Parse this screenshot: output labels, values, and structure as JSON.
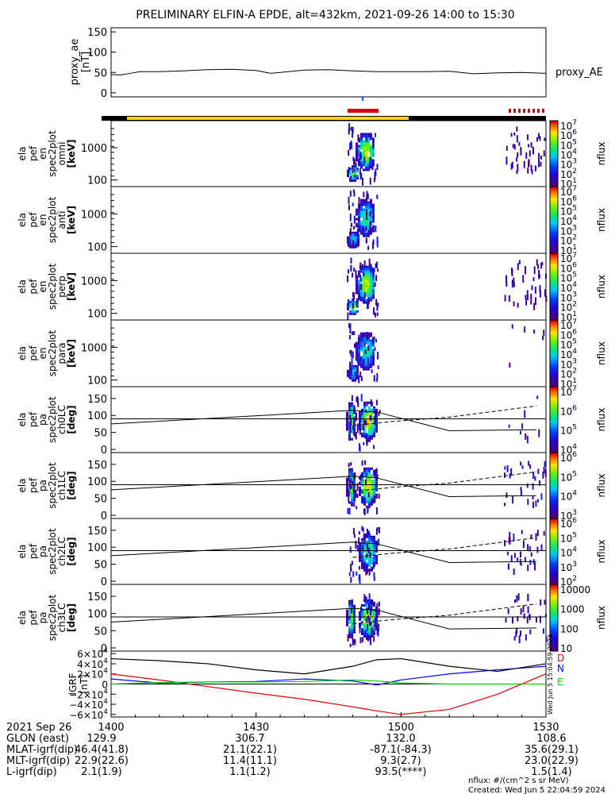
{
  "title": "PRELIMINARY ELFIN-A EPDE, alt=432km, 2021-09-26 14:00 to 15:30",
  "colors": {
    "zone_black": "#000000",
    "zone_yellow": "#ffd400",
    "zone_red": "#e00000",
    "igrf_D": "#e00000",
    "igrf_N": "#0000ff",
    "igrf_E": "#00cc00",
    "proxy_tick": "#1060ff"
  },
  "chart_data": [
    {
      "type": "line",
      "panel": "proxy_ae",
      "ylabel": "proxy_ae\n[nT]",
      "yticks": [
        "150",
        "100",
        "50",
        "0"
      ],
      "ylim": [
        -10,
        160
      ],
      "series_label": "proxy_AE",
      "x_minutes": [
        0,
        2,
        4,
        6,
        8,
        10,
        15,
        20,
        25,
        30,
        33,
        35,
        40,
        45,
        50,
        55,
        60,
        65,
        70,
        75,
        80,
        85,
        90
      ],
      "values": [
        45,
        44,
        48,
        52,
        52,
        52,
        54,
        57,
        58,
        55,
        48,
        50,
        56,
        57,
        54,
        52,
        52,
        52,
        53,
        47,
        49,
        50,
        48
      ]
    },
    {
      "type": "heatmap",
      "panel": "ela pef en spec2plot omni",
      "ylabel": [
        "ela",
        "pef",
        "en",
        "spec2plot",
        "omni",
        "[keV]"
      ],
      "yticks": [
        "1000",
        "100"
      ],
      "colorbar": {
        "label": "nflux",
        "ticks": [
          "10^7",
          "10^6",
          "10^5",
          "10^4",
          "10^3",
          "10^2",
          "10^1"
        ]
      }
    },
    {
      "type": "heatmap",
      "panel": "ela pef en spec2plot anti",
      "ylabel": [
        "ela",
        "pef",
        "en",
        "spec2plot",
        "anti",
        "[keV]"
      ],
      "yticks": [
        "1000",
        "100"
      ],
      "colorbar": {
        "label": "nflux",
        "ticks": [
          "10^7",
          "10^6",
          "10^5",
          "10^4",
          "10^3",
          "10^2",
          "10^1"
        ]
      }
    },
    {
      "type": "heatmap",
      "panel": "ela pef en spec2plot perp",
      "ylabel": [
        "ela",
        "pef",
        "en",
        "spec2plot",
        "perp",
        "[keV]"
      ],
      "yticks": [
        "1000",
        "100"
      ],
      "colorbar": {
        "label": "nflux",
        "ticks": [
          "10^7",
          "10^6",
          "10^5",
          "10^4",
          "10^3",
          "10^2",
          "10^1"
        ]
      }
    },
    {
      "type": "heatmap",
      "panel": "ela pef en spec2plot para",
      "ylabel": [
        "ela",
        "pef",
        "en",
        "spec2plot",
        "para",
        "[keV]"
      ],
      "yticks": [
        "1000",
        "100"
      ],
      "colorbar": {
        "label": "nflux",
        "ticks": [
          "10^7",
          "10^6",
          "10^5",
          "10^4",
          "10^3",
          "10^2",
          "10^1"
        ]
      }
    },
    {
      "type": "heatmap",
      "panel": "ela pef pa spec2plot ch0LC",
      "ylabel": [
        "ela",
        "pef",
        "pa",
        "spec2plot",
        "ch0LC",
        "[deg]"
      ],
      "yticks": [
        "150",
        "100",
        "50",
        "0"
      ],
      "ylim": [
        0,
        180
      ],
      "colorbar": {
        "label": "nflux",
        "ticks": [
          "10^7",
          "10^6",
          "10^5",
          "10^4"
        ]
      }
    },
    {
      "type": "heatmap",
      "panel": "ela pef pa spec2plot ch1LC",
      "ylabel": [
        "ela",
        "pef",
        "pa",
        "spec2plot",
        "ch1LC",
        "[deg]"
      ],
      "yticks": [
        "150",
        "100",
        "50",
        "0"
      ],
      "ylim": [
        0,
        180
      ],
      "colorbar": {
        "label": "nflux",
        "ticks": [
          "10^6",
          "10^5",
          "10^4",
          "10^3"
        ]
      }
    },
    {
      "type": "heatmap",
      "panel": "ela pef pa spec2plot ch2LC",
      "ylabel": [
        "ela",
        "pef",
        "pa",
        "spec2plot",
        "ch2LC",
        "[deg]"
      ],
      "yticks": [
        "150",
        "100",
        "50",
        "0"
      ],
      "ylim": [
        0,
        180
      ],
      "colorbar": {
        "label": "nflux",
        "ticks": [
          "10^6",
          "10^5",
          "10^4",
          "10^3",
          "10^2"
        ]
      }
    },
    {
      "type": "heatmap",
      "panel": "ela pef pa spec2plot ch3LC",
      "ylabel": [
        "ela",
        "pef",
        "pa",
        "spec2plot",
        "ch3LC",
        "[deg]"
      ],
      "yticks": [
        "150",
        "100",
        "50",
        "0"
      ],
      "ylim": [
        0,
        180
      ],
      "colorbar": {
        "label": "nflux",
        "ticks": [
          "10000",
          "1000",
          "100",
          "10"
        ]
      }
    },
    {
      "type": "line",
      "panel": "IGRF",
      "ylabel": "IGRF\n[nT]",
      "yticks": [
        "6×10^4",
        "4×10^4",
        "2×10^4",
        "0",
        "−2×10^4",
        "−4×10^4",
        "−6×10^4"
      ],
      "ylim": [
        -65000,
        65000
      ],
      "legend": [
        "D",
        "N",
        "E"
      ],
      "x_minutes": [
        0,
        10,
        20,
        30,
        40,
        50,
        55,
        60,
        70,
        80,
        90
      ],
      "series": [
        {
          "name": "D",
          "values": [
            20000,
            8000,
            -5000,
            -18000,
            -30000,
            -45000,
            -53000,
            -60000,
            -50000,
            -20000,
            20000
          ]
        },
        {
          "name": "N",
          "values": [
            10000,
            2000,
            4000,
            5000,
            10000,
            6000,
            -2000,
            8000,
            20000,
            28000,
            35000
          ]
        },
        {
          "name": "E",
          "values": [
            0,
            3000,
            4000,
            4000,
            5000,
            8000,
            6000,
            2000,
            0,
            0,
            0
          ]
        },
        {
          "name": "",
          "values": [
            50000,
            46000,
            40000,
            28000,
            20000,
            35000,
            48000,
            50000,
            35000,
            25000,
            40000
          ]
        }
      ]
    }
  ],
  "x_axis": {
    "xlim_minutes": [
      0,
      90
    ],
    "tick_labels": [
      "1400",
      "1430",
      "1500",
      "1530"
    ],
    "tick_minutes": [
      0,
      30,
      60,
      90
    ]
  },
  "bottom_table": {
    "date": "2021 Sep 26",
    "rows": [
      {
        "label": "GLON (east)",
        "values": [
          "129.9",
          "306.7",
          "132.0",
          "108.6"
        ]
      },
      {
        "label": "MLAT-igrf(dip)",
        "values": [
          "46.4(41.8)",
          "21.1(22.1)",
          "-87.1(-84.3)",
          "35.6(29.1)"
        ]
      },
      {
        "label": "MLT-igrf(dip)",
        "values": [
          "22.9(22.6)",
          "11.4(11.1)",
          "9.3(2.7)",
          "23.0(22.9)"
        ]
      },
      {
        "label": "L-igrf(dip)",
        "values": [
          "2.1(1.9)",
          "1.1(1.2)",
          "93.5(****)",
          "1.5(1.4)"
        ]
      }
    ]
  },
  "footer": {
    "units": "nflux: #/(cm^2 s sr MeV)",
    "created": "Created: Wed Jun  5 22:04:59 2024",
    "side_stamp": "Wed Jun  5 15:04:59 2024"
  }
}
